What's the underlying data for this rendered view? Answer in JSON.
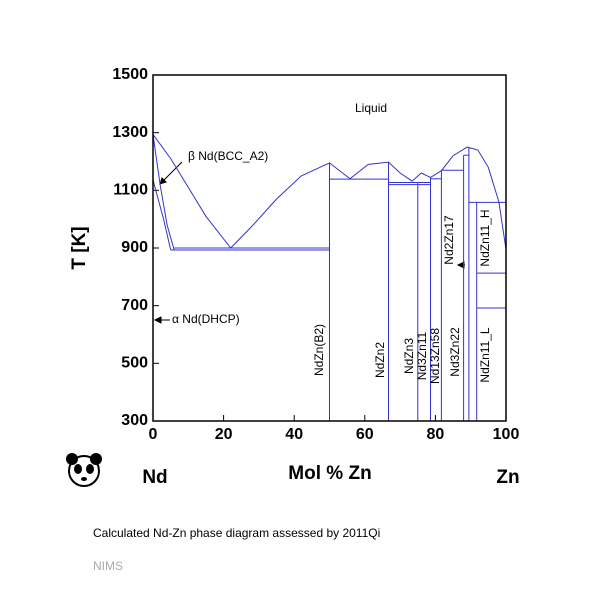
{
  "chart_data": {
    "type": "line",
    "color": "#3333cc",
    "title": "Calculated Nd-Zn phase diagram assessed by 2011Qi",
    "source": "NIMS",
    "x_label": "Mol % Zn",
    "y_label": "T [K]",
    "x_left_label": "Nd",
    "x_right_label": "Zn",
    "xlim": [
      0,
      100
    ],
    "ylim": [
      300,
      1500
    ],
    "xticks": [
      0,
      20,
      40,
      60,
      80,
      100
    ],
    "yticks": [
      300,
      500,
      700,
      900,
      1100,
      1300,
      1500
    ],
    "annotations": [
      "Liquid",
      "β Nd(BCC_A2)",
      "α Nd(DHCP)",
      "NdZn(B2)",
      "NdZn2",
      "NdZn3",
      "Nd3Zn11",
      "Nd13Zn58",
      "Nd3Zn22",
      "Nd2Zn17",
      "NdZn11_H",
      "NdZn11_L"
    ],
    "series": [
      {
        "x": [
          0,
          5,
          10,
          15,
          22,
          28,
          35,
          42,
          50,
          55.8,
          61,
          66.7,
          70,
          73.4,
          76,
          78.6,
          81.7,
          85,
          89,
          92,
          95,
          98,
          100
        ],
        "values": [
          1294,
          1210,
          1110,
          1010,
          900,
          975,
          1070,
          1150,
          1195,
          1140,
          1190,
          1198,
          1160,
          1132,
          1160,
          1145,
          1168,
          1220,
          1250,
          1240,
          1180,
          1060,
          895
        ]
      },
      {
        "x": [
          0,
          2,
          4,
          6
        ],
        "values": [
          1294,
          1120,
          980,
          893
        ]
      },
      {
        "x": [
          0,
          3,
          5
        ],
        "values": [
          1136,
          1000,
          893
        ]
      },
      {
        "x": [
          6,
          50
        ],
        "values": [
          900,
          900
        ]
      },
      {
        "x": [
          5,
          50
        ],
        "values": [
          893,
          893
        ]
      },
      {
        "x": [
          50,
          50
        ],
        "values": [
          300,
          1195
        ]
      },
      {
        "x": [
          50,
          66.7
        ],
        "values": [
          1139,
          1139
        ]
      },
      {
        "x": [
          66.7,
          66.7
        ],
        "values": [
          300,
          1198
        ]
      },
      {
        "x": [
          66.7,
          78.6
        ],
        "values": [
          1127,
          1127
        ]
      },
      {
        "x": [
          66.7,
          78.6
        ],
        "values": [
          1120,
          1120
        ]
      },
      {
        "x": [
          75,
          75
        ],
        "values": [
          300,
          1127
        ]
      },
      {
        "x": [
          78.6,
          78.6
        ],
        "values": [
          300,
          1145
        ]
      },
      {
        "x": [
          78.6,
          81.7
        ],
        "values": [
          1140,
          1140
        ]
      },
      {
        "x": [
          81.7,
          81.7
        ],
        "values": [
          300,
          1168
        ]
      },
      {
        "x": [
          81.7,
          88
        ],
        "values": [
          1170,
          1170
        ]
      },
      {
        "x": [
          88,
          88
        ],
        "values": [
          300,
          1222
        ]
      },
      {
        "x": [
          88,
          89.5
        ],
        "values": [
          1222,
          1222
        ]
      },
      {
        "x": [
          89.5,
          89.5
        ],
        "values": [
          300,
          1250
        ]
      },
      {
        "x": [
          89.5,
          100
        ],
        "values": [
          1058,
          1058
        ]
      },
      {
        "x": [
          91.7,
          91.7
        ],
        "values": [
          300,
          1058
        ]
      },
      {
        "x": [
          91.7,
          100
        ],
        "values": [
          813,
          813
        ]
      },
      {
        "x": [
          91.7,
          100
        ],
        "values": [
          692,
          692
        ]
      }
    ]
  }
}
